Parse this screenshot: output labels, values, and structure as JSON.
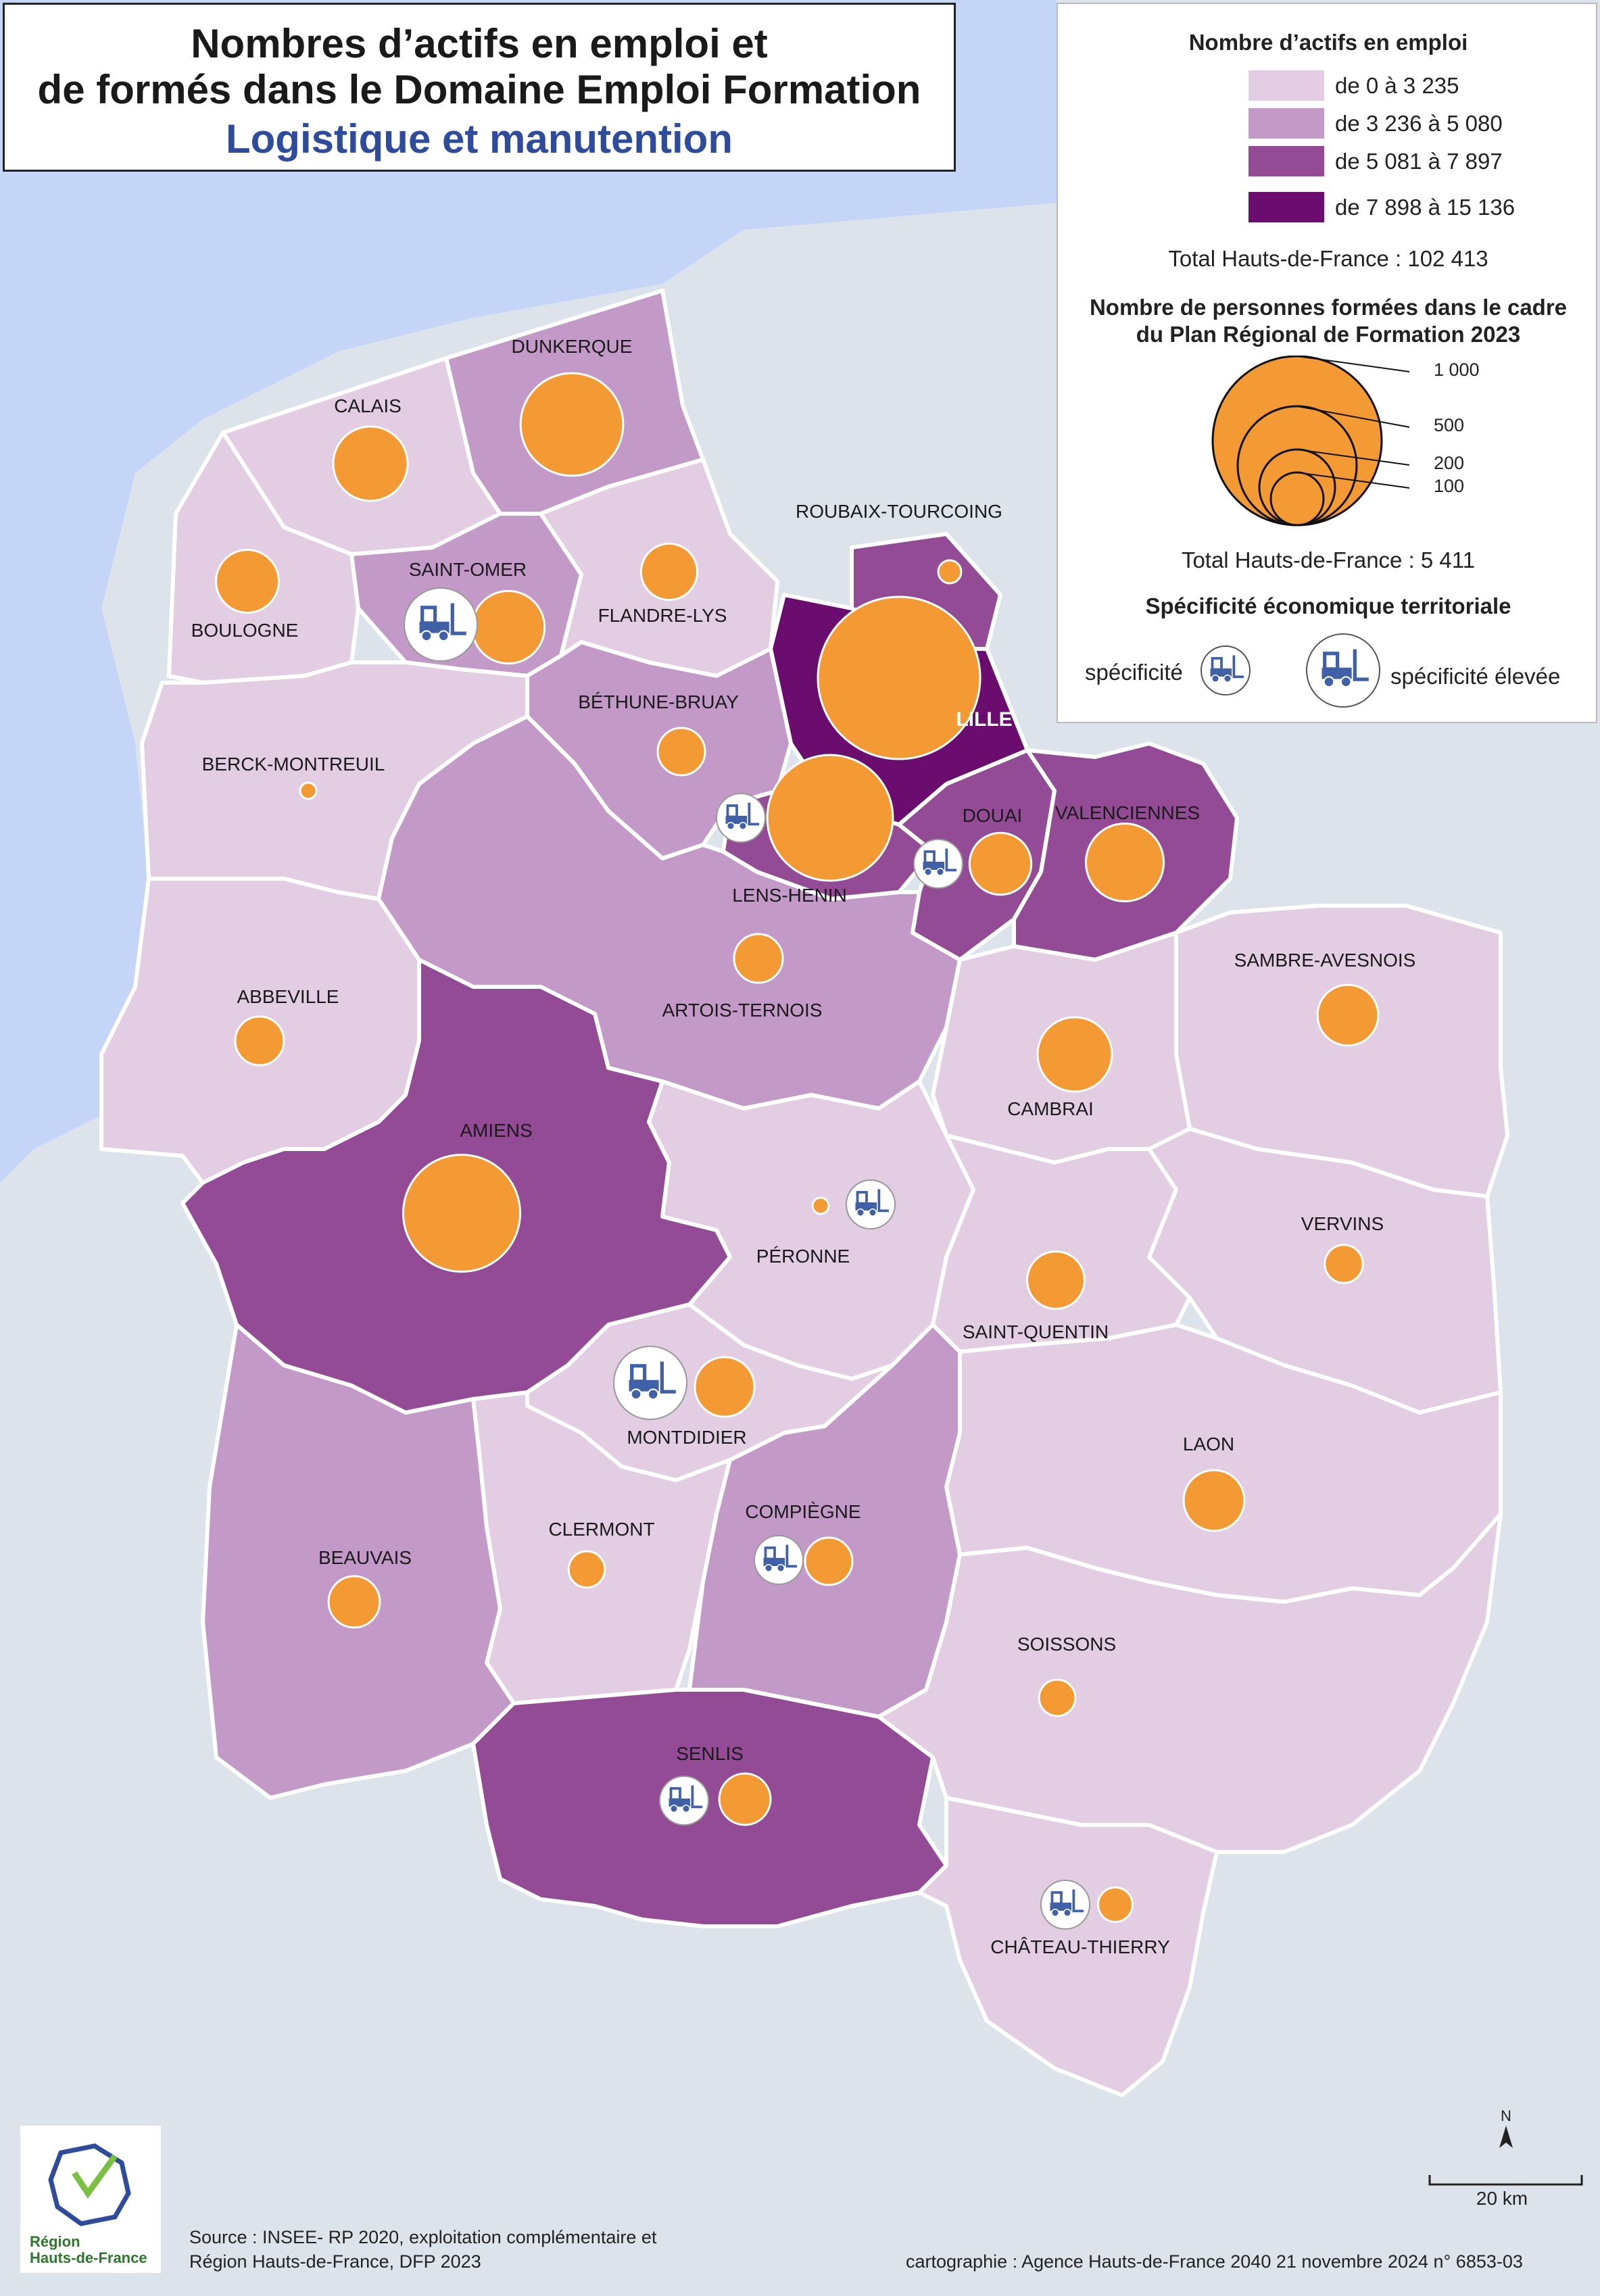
{
  "title": {
    "line1": "Nombres d’actifs en emploi et",
    "line2": "de formés dans le Domaine Emploi Formation",
    "subtitle": "Logistique et manutention"
  },
  "legend": {
    "choropleth_title": "Nombre d’actifs en emploi",
    "classes": [
      {
        "label": "de 0 à 3 235",
        "color": "#e2cde2"
      },
      {
        "label": "de 3 236 à 5 080",
        "color": "#c399c7"
      },
      {
        "label": "de 5 081 à  7 897",
        "color": "#934b96"
      },
      {
        "label": "de 7 898 à 15 136",
        "color": "#6b0d6f"
      }
    ],
    "total_actifs": "Total Hauts-de-France : 102 413",
    "circle_title_1": "Nombre de personnes formées dans le cadre",
    "circle_title_2": "du Plan Régional de Formation 2023",
    "circle_scale": [
      {
        "value": 1000,
        "label": "1 000"
      },
      {
        "value": 500,
        "label": "500"
      },
      {
        "value": 200,
        "label": "200"
      },
      {
        "value": 100,
        "label": "100"
      }
    ],
    "total_formes": "Total Hauts-de-France :  5 411",
    "specificity_title": "Spécificité économique territoriale",
    "spec_label": "spécificité",
    "spec_high_label": "spécificité élevée"
  },
  "colors": {
    "sea": "#c4d5f8",
    "land_outside": "#dde3eb",
    "circle": "#f39a35",
    "icon": "#4060a8",
    "border": "#ffffff"
  },
  "districts": [
    {
      "name": "DUNKERQUE",
      "class": 1,
      "trained": 400
    },
    {
      "name": "CALAIS",
      "class": 0,
      "trained": 210
    },
    {
      "name": "BOULOGNE",
      "class": 0,
      "trained": 150
    },
    {
      "name": "SAINT-OMER",
      "class": 1,
      "trained": 200,
      "specificity": "high"
    },
    {
      "name": "FLANDRE-LYS",
      "class": 0,
      "trained": 120
    },
    {
      "name": "ROUBAIX-TOURCOING",
      "class": 2,
      "trained": 20
    },
    {
      "name": "LILLE",
      "class": 3,
      "trained": 1000
    },
    {
      "name": "BÉTHUNE-BRUAY",
      "class": 1,
      "trained": 85
    },
    {
      "name": "BERCK-MONTREUIL",
      "class": 0,
      "trained": 10
    },
    {
      "name": "LENS-HENIN",
      "class": 2,
      "trained": 600,
      "specificity": "normal"
    },
    {
      "name": "DOUAI",
      "class": 2,
      "trained": 145,
      "specificity": "normal"
    },
    {
      "name": "VALENCIENNES",
      "class": 2,
      "trained": 230
    },
    {
      "name": "ARTOIS-TERNOIS",
      "class": 1,
      "trained": 90
    },
    {
      "name": "ABBEVILLE",
      "class": 0,
      "trained": 90
    },
    {
      "name": "SAMBRE-AVESNOIS",
      "class": 0,
      "trained": 140
    },
    {
      "name": "CAMBRAI",
      "class": 0,
      "trained": 210
    },
    {
      "name": "AMIENS",
      "class": 2,
      "trained": 520
    },
    {
      "name": "PÉRONNE",
      "class": 0,
      "trained": 10,
      "specificity": "normal"
    },
    {
      "name": "VERVINS",
      "class": 0,
      "trained": 55
    },
    {
      "name": "SAINT-QUENTIN",
      "class": 0,
      "trained": 125
    },
    {
      "name": "MONTDIDIER",
      "class": 0,
      "trained": 135,
      "specificity": "high"
    },
    {
      "name": "LAON",
      "class": 0,
      "trained": 140
    },
    {
      "name": "CLERMONT",
      "class": 0,
      "trained": 50
    },
    {
      "name": "COMPIÈGNE",
      "class": 1,
      "trained": 85,
      "specificity": "normal"
    },
    {
      "name": "BEAUVAIS",
      "class": 1,
      "trained": 100
    },
    {
      "name": "SOISSONS",
      "class": 0,
      "trained": 50
    },
    {
      "name": "SENLIS",
      "class": 2,
      "trained": 100,
      "specificity": "normal"
    },
    {
      "name": "CHÂTEAU-THIERRY",
      "class": 0,
      "trained": 45,
      "specificity": "normal"
    }
  ],
  "scale_bar": {
    "label": "20 km",
    "north": "N"
  },
  "logo": {
    "line1": "Région",
    "line2": "Hauts-de-France"
  },
  "footer": {
    "source1": "Source : INSEE- RP 2020, exploitation complémentaire et",
    "source2": "Région Hauts-de-France, DFP 2023",
    "credit": "cartographie : Agence Hauts-de-France 2040  21 novembre 2024  n° 6853-03"
  }
}
